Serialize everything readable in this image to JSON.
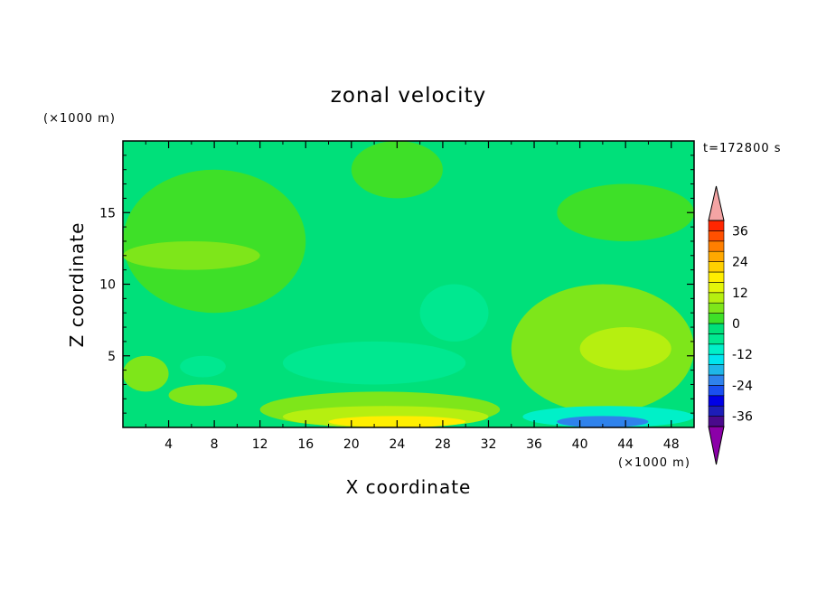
{
  "chart_data": {
    "type": "heatmap",
    "title": "zonal velocity",
    "xlabel": "X coordinate",
    "ylabel": "Z coordinate",
    "x_unit_label": "(×1000 m)",
    "y_unit_label": "(×1000 m)",
    "time_label": "t=172800 s",
    "xlim": [
      0,
      50
    ],
    "ylim": [
      0,
      20
    ],
    "x_ticks": [
      4,
      8,
      12,
      16,
      20,
      24,
      28,
      32,
      36,
      40,
      44,
      48
    ],
    "y_ticks": [
      5,
      10,
      15
    ],
    "colorbar": {
      "levels": [
        -40,
        -36,
        -32,
        -28,
        -24,
        -20,
        -16,
        -12,
        -8,
        -4,
        0,
        4,
        8,
        12,
        16,
        20,
        24,
        28,
        32,
        36,
        40
      ],
      "colors": [
        "#4a0a8c",
        "#1d1db8",
        "#0000e6",
        "#1a4ff0",
        "#2f82ec",
        "#1fb6e8",
        "#00e5ee",
        "#00f0c8",
        "#00e890",
        "#00e07a",
        "#3ee028",
        "#7ee61a",
        "#b6ef10",
        "#e4f50a",
        "#ffee00",
        "#ffd000",
        "#ffa800",
        "#ff7f00",
        "#ff5000",
        "#ff2600"
      ],
      "tick_labels": [
        "36",
        "24",
        "12",
        "0",
        "-12",
        "-24",
        "-36"
      ],
      "over_color": "#f4a4a4",
      "under_color": "#8b00a8"
    },
    "regions": [
      {
        "x": [
          0,
          50
        ],
        "z": [
          0,
          20
        ],
        "value": -2
      },
      {
        "x": [
          0,
          16
        ],
        "z": [
          8,
          18
        ],
        "value": 2
      },
      {
        "x": [
          0,
          12
        ],
        "z": [
          11,
          13
        ],
        "value": 4
      },
      {
        "x": [
          20,
          28
        ],
        "z": [
          16,
          20
        ],
        "value": 2
      },
      {
        "x": [
          38,
          50
        ],
        "z": [
          13,
          17
        ],
        "value": 2
      },
      {
        "x": [
          26,
          32
        ],
        "z": [
          6,
          10
        ],
        "value": -6
      },
      {
        "x": [
          14,
          30
        ],
        "z": [
          3,
          6
        ],
        "value": -6
      },
      {
        "x": [
          5,
          9
        ],
        "z": [
          3.5,
          5
        ],
        "value": -8
      },
      {
        "x": [
          34,
          50
        ],
        "z": [
          1,
          10
        ],
        "value": 4
      },
      {
        "x": [
          40,
          48
        ],
        "z": [
          4,
          7
        ],
        "value": 8
      },
      {
        "x": [
          0,
          4
        ],
        "z": [
          2.5,
          5
        ],
        "value": 4
      },
      {
        "x": [
          4,
          10
        ],
        "z": [
          1.5,
          3
        ],
        "value": 6
      },
      {
        "x": [
          12,
          33
        ],
        "z": [
          0,
          2.5
        ],
        "value": 4
      },
      {
        "x": [
          14,
          32
        ],
        "z": [
          0,
          1.5
        ],
        "value": 10
      },
      {
        "x": [
          18,
          30
        ],
        "z": [
          0,
          0.8
        ],
        "value": 16
      },
      {
        "x": [
          35,
          50
        ],
        "z": [
          0,
          1.5
        ],
        "value": -12
      },
      {
        "x": [
          38,
          46
        ],
        "z": [
          0,
          0.8
        ],
        "value": -24
      }
    ]
  }
}
